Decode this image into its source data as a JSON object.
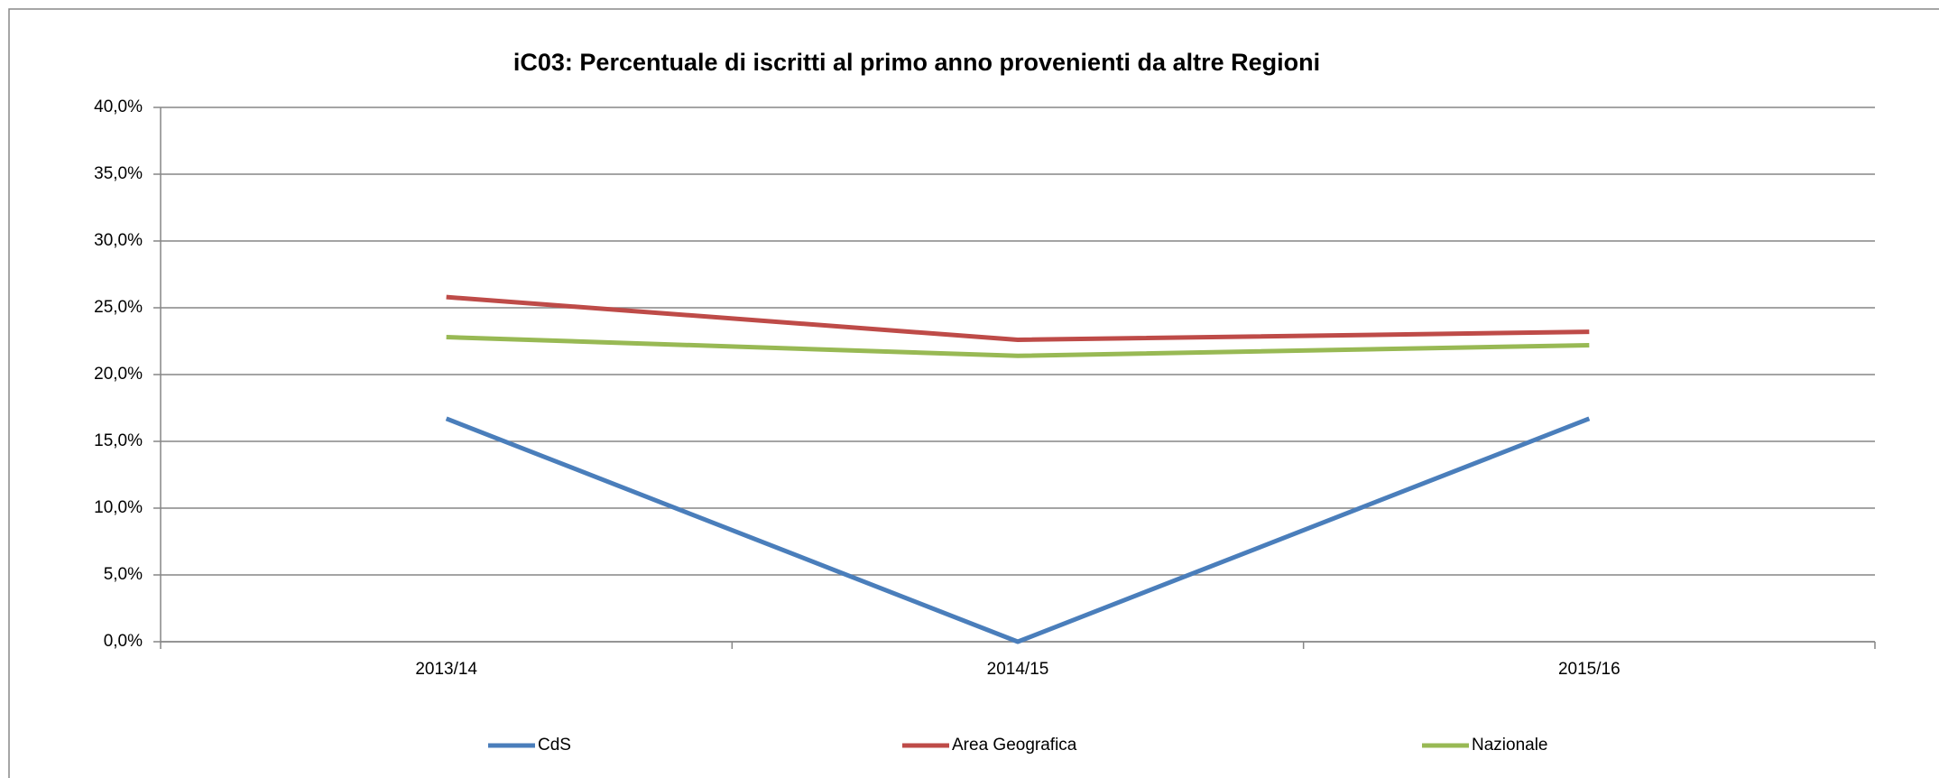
{
  "chart_data": {
    "type": "line",
    "title": "iC03: Percentuale di iscritti al primo anno provenienti da altre Regioni",
    "categories": [
      "2013/14",
      "2014/15",
      "2015/16"
    ],
    "series": [
      {
        "name": "CdS",
        "color": "#4a7ebb",
        "values": [
          16.7,
          0,
          16.7
        ]
      },
      {
        "name": "Area Geografica",
        "color": "#be4b48",
        "values": [
          25.8,
          22.6,
          23.2
        ]
      },
      {
        "name": "Nazionale",
        "color": "#98b954",
        "values": [
          22.8,
          21.4,
          22.2
        ]
      }
    ],
    "ylim": [
      0,
      40
    ],
    "yticks": [
      {
        "value": 0,
        "label": "0,0%"
      },
      {
        "value": 5,
        "label": "5,0%"
      },
      {
        "value": 10,
        "label": "10,0%"
      },
      {
        "value": 15,
        "label": "15,0%"
      },
      {
        "value": 20,
        "label": "20,0%"
      },
      {
        "value": 25,
        "label": "25,0%"
      },
      {
        "value": 30,
        "label": "30,0%"
      },
      {
        "value": 35,
        "label": "35,0%"
      },
      {
        "value": 40,
        "label": "40,0%"
      }
    ],
    "grid": true,
    "legend": "bottom"
  }
}
